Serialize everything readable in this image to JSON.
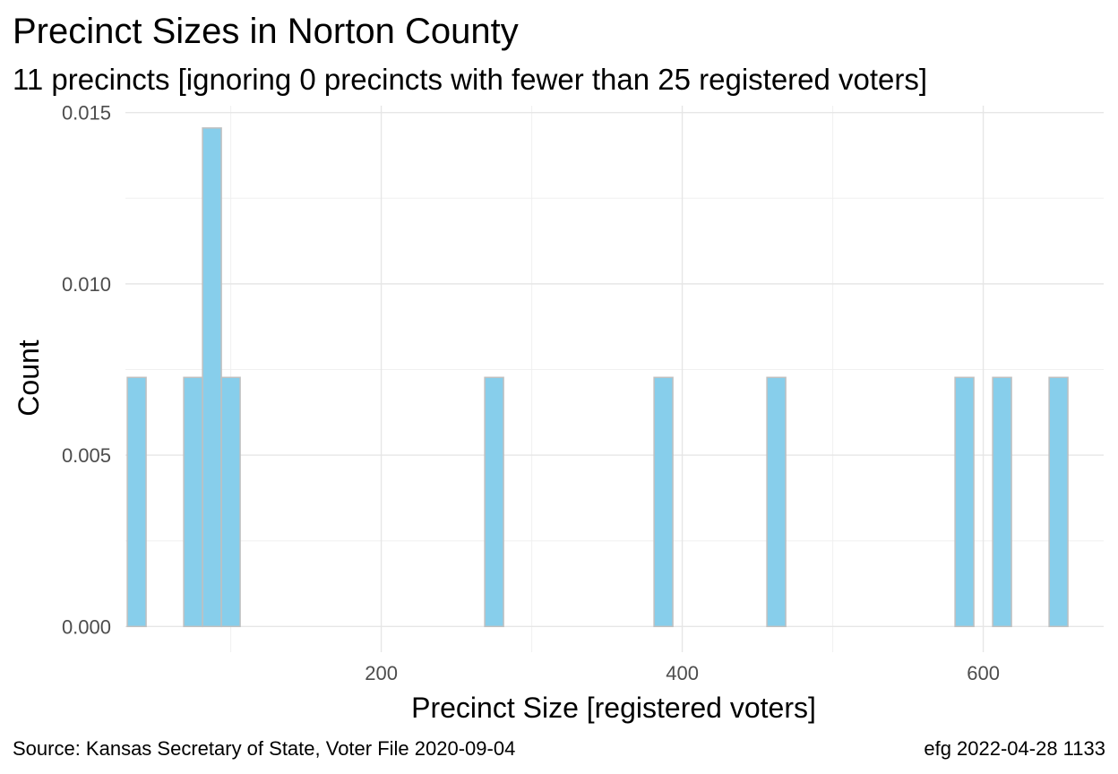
{
  "chart_data": {
    "type": "bar",
    "title": "Precinct Sizes in Norton County",
    "subtitle": "11 precincts [ignoring 0 precincts with fewer than 25 registered voters]",
    "xlabel": "Precinct Size [registered voters]",
    "ylabel": "Count",
    "caption_left": "Source:  Kansas Secretary of State, Voter File  2020-09-04",
    "caption_right": "efg 2022-04-28 1133",
    "xlim": [
      30,
      680
    ],
    "ylim": [
      -0.00075,
      0.0152
    ],
    "x_ticks": [
      200,
      400,
      600
    ],
    "x_tick_labels": [
      "200",
      "400",
      "600"
    ],
    "x_minor_ticks": [
      100,
      300,
      500
    ],
    "y_ticks": [
      0,
      0.005,
      0.01,
      0.015
    ],
    "y_tick_labels": [
      "0.000",
      "0.005",
      "0.010",
      "0.015"
    ],
    "y_minor_ticks": [
      0.0025,
      0.0075,
      0.0125
    ],
    "bin_width": 12.5,
    "bars": [
      {
        "x": 37.5,
        "value": 0.00727
      },
      {
        "x": 75,
        "value": 0.00727
      },
      {
        "x": 87.5,
        "value": 0.01455
      },
      {
        "x": 100,
        "value": 0.00727
      },
      {
        "x": 275,
        "value": 0.00727
      },
      {
        "x": 387.5,
        "value": 0.00727
      },
      {
        "x": 462.5,
        "value": 0.00727
      },
      {
        "x": 587.5,
        "value": 0.00727
      },
      {
        "x": 612.5,
        "value": 0.00727
      },
      {
        "x": 650,
        "value": 0.00727
      }
    ],
    "bar_fill": "#87CEEB",
    "bar_outline": "#C0C0C0",
    "grid": true
  }
}
